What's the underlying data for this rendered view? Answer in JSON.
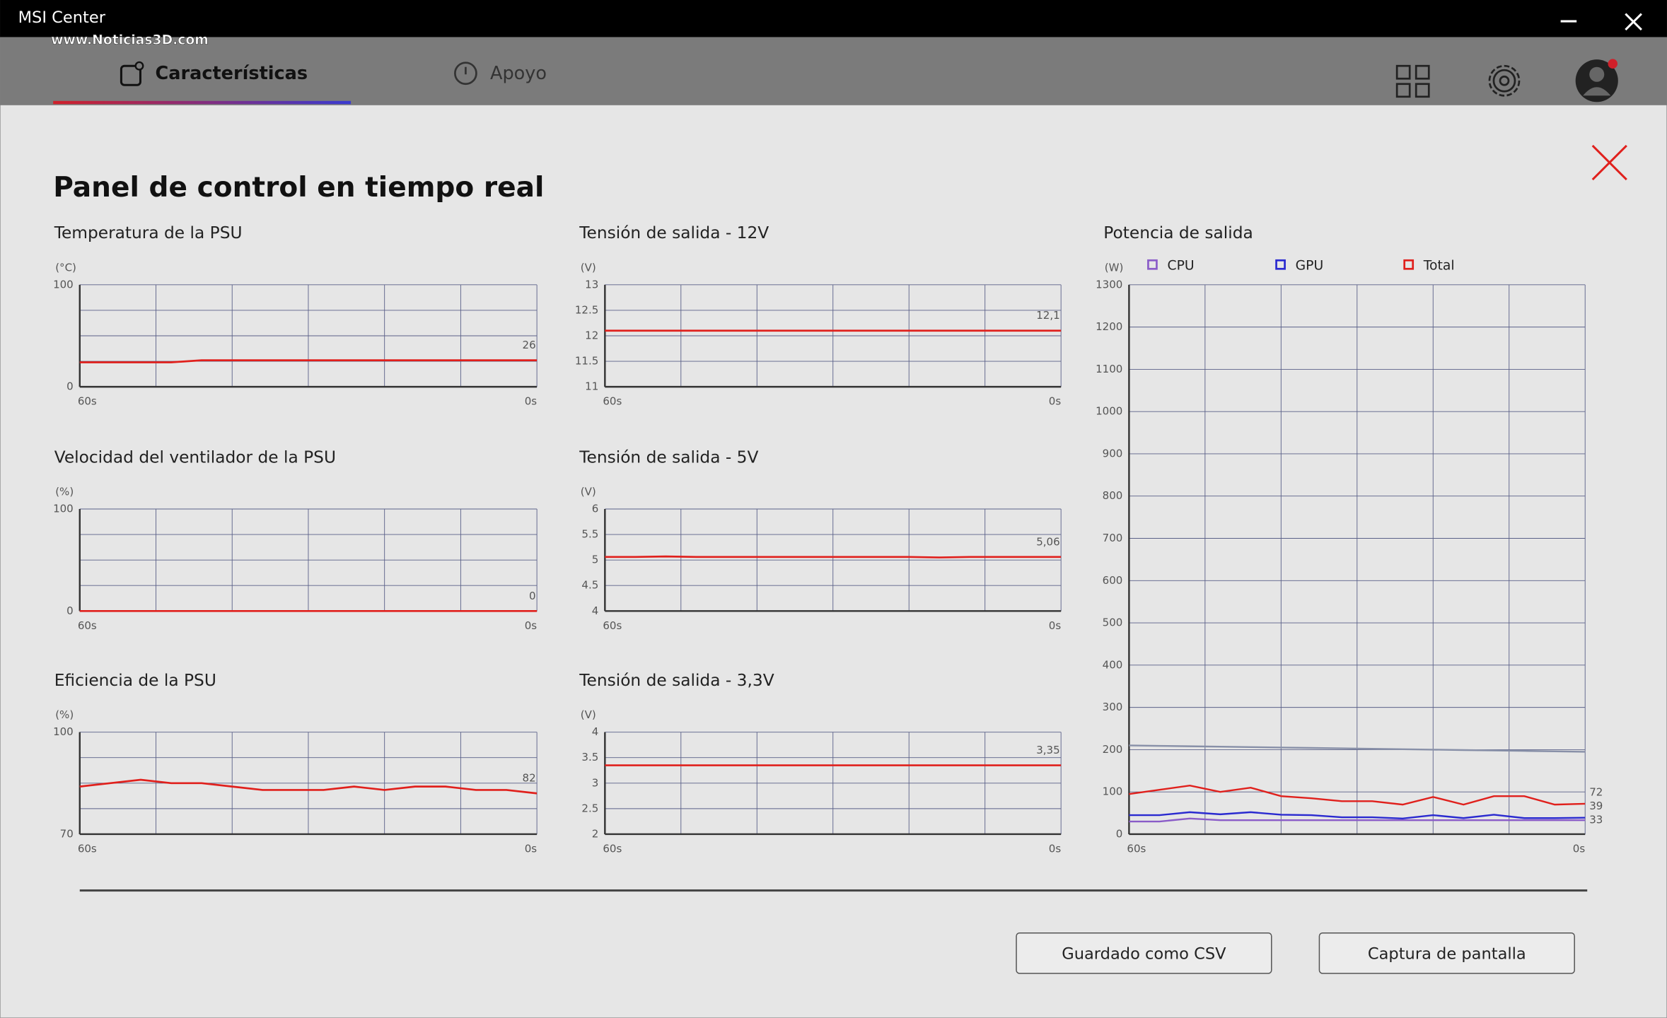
{
  "window": {
    "title": "MSI Center",
    "watermark": "www.Noticias3D.com"
  },
  "tabs": [
    {
      "label": "Características"
    },
    {
      "label": "Apoyo"
    }
  ],
  "panel": {
    "title": "Panel de control en tiempo real"
  },
  "buttons": [
    "Guardado como CSV",
    "Captura de pantalla"
  ],
  "chart_data": [
    {
      "type": "line",
      "title": "Temperatura de la PSU",
      "unit_label": "(°C)",
      "x": [
        60,
        56,
        52,
        48,
        44,
        40,
        36,
        32,
        28,
        24,
        20,
        16,
        12,
        8,
        4,
        0
      ],
      "xlim": [
        60,
        0
      ],
      "xticks": [
        {
          "value": 60,
          "label": "60s"
        },
        {
          "value": 0,
          "label": "0s"
        }
      ],
      "xgrid": [
        50,
        40,
        30,
        20,
        10
      ],
      "ylim": [
        0,
        100
      ],
      "yticks": [
        0,
        100
      ],
      "ygrid": [
        25,
        50,
        75
      ],
      "series": [
        {
          "color": "#e0201c",
          "values": [
            24,
            24,
            24,
            24,
            26,
            26,
            26,
            26,
            26,
            26,
            26,
            26,
            26,
            26,
            26,
            26
          ],
          "value_labels": [
            null,
            null,
            null,
            null,
            null,
            null,
            null,
            null,
            null,
            null,
            null,
            null,
            null,
            null,
            null,
            "26"
          ]
        }
      ]
    },
    {
      "type": "line",
      "title": "Tensión de salida - 12V",
      "unit_label": "(V)",
      "x": [
        60,
        56,
        52,
        48,
        44,
        40,
        36,
        32,
        28,
        24,
        20,
        16,
        12,
        8,
        4,
        0
      ],
      "xlim": [
        60,
        0
      ],
      "xticks": [
        {
          "value": 60,
          "label": "60s"
        },
        {
          "value": 0,
          "label": "0s"
        }
      ],
      "xgrid": [
        50,
        40,
        30,
        20,
        10
      ],
      "ylim": [
        11,
        13
      ],
      "yticks": [
        11,
        11.5,
        12,
        12.5,
        13
      ],
      "ygrid": [],
      "series": [
        {
          "color": "#e0201c",
          "values": [
            12.1,
            12.1,
            12.1,
            12.1,
            12.1,
            12.1,
            12.1,
            12.1,
            12.1,
            12.1,
            12.1,
            12.1,
            12.1,
            12.1,
            12.1,
            12.1
          ],
          "value_labels": [
            null,
            null,
            null,
            null,
            null,
            null,
            null,
            null,
            null,
            null,
            null,
            null,
            null,
            null,
            null,
            "12,1"
          ]
        }
      ]
    },
    {
      "type": "line",
      "title": "Potencia de salida",
      "unit_label": "(W)",
      "x": [
        60,
        56,
        52,
        48,
        44,
        40,
        36,
        32,
        28,
        24,
        20,
        16,
        12,
        8,
        4,
        0
      ],
      "xlim": [
        60,
        0
      ],
      "xticks": [
        {
          "value": 60,
          "label": "60s"
        },
        {
          "value": 0,
          "label": "0s"
        }
      ],
      "xgrid": [
        50,
        40,
        30,
        20,
        10
      ],
      "ylim": [
        0,
        1300
      ],
      "yticks": [
        0,
        100,
        200,
        300,
        400,
        500,
        600,
        700,
        800,
        900,
        1000,
        1100,
        1200,
        1300
      ],
      "ygrid": [],
      "series": [
        {
          "name": "CPU",
          "color": "#8a5cc8",
          "values": [
            30,
            30,
            37,
            33,
            33,
            33,
            33,
            33,
            33,
            33,
            33,
            33,
            33,
            33,
            33,
            33
          ],
          "value_labels": [
            null,
            null,
            null,
            null,
            null,
            null,
            null,
            null,
            null,
            null,
            null,
            null,
            null,
            null,
            null,
            "33"
          ]
        },
        {
          "name": "GPU",
          "color": "#2a2ad0",
          "values": [
            45,
            45,
            52,
            47,
            52,
            46,
            45,
            40,
            40,
            37,
            45,
            38,
            46,
            38,
            38,
            39
          ],
          "value_labels": [
            null,
            null,
            null,
            null,
            null,
            null,
            null,
            null,
            null,
            null,
            null,
            null,
            null,
            null,
            null,
            "39"
          ]
        },
        {
          "name": "Total",
          "color": "#e0201c",
          "values": [
            95,
            105,
            115,
            100,
            110,
            90,
            85,
            78,
            78,
            70,
            88,
            70,
            90,
            90,
            70,
            72
          ],
          "value_labels": [
            null,
            null,
            null,
            null,
            null,
            null,
            null,
            null,
            null,
            null,
            null,
            null,
            null,
            null,
            null,
            "72"
          ]
        },
        {
          "color": "#8890a8",
          "values": [
            210,
            209,
            208,
            207,
            206,
            205,
            204,
            203,
            202,
            201,
            200,
            199,
            198,
            197,
            196,
            195
          ]
        }
      ]
    },
    {
      "type": "line",
      "title": "Velocidad del ventilador de la PSU",
      "unit_label": "(%)",
      "x": [
        60,
        56,
        52,
        48,
        44,
        40,
        36,
        32,
        28,
        24,
        20,
        16,
        12,
        8,
        4,
        0
      ],
      "xlim": [
        60,
        0
      ],
      "xticks": [
        {
          "value": 60,
          "label": "60s"
        },
        {
          "value": 0,
          "label": "0s"
        }
      ],
      "xgrid": [
        50,
        40,
        30,
        20,
        10
      ],
      "ylim": [
        0,
        100
      ],
      "yticks": [
        0,
        100
      ],
      "ygrid": [
        25,
        50,
        75
      ],
      "series": [
        {
          "color": "#e0201c",
          "values": [
            0,
            0,
            0,
            0,
            0,
            0,
            0,
            0,
            0,
            0,
            0,
            0,
            0,
            0,
            0,
            0
          ],
          "value_labels": [
            null,
            null,
            null,
            null,
            null,
            null,
            null,
            null,
            null,
            null,
            null,
            null,
            null,
            null,
            null,
            "0"
          ]
        }
      ]
    },
    {
      "type": "line",
      "title": "Tensión de salida - 5V",
      "unit_label": "(V)",
      "x": [
        60,
        56,
        52,
        48,
        44,
        40,
        36,
        32,
        28,
        24,
        20,
        16,
        12,
        8,
        4,
        0
      ],
      "xlim": [
        60,
        0
      ],
      "xticks": [
        {
          "value": 60,
          "label": "60s"
        },
        {
          "value": 0,
          "label": "0s"
        }
      ],
      "xgrid": [
        50,
        40,
        30,
        20,
        10
      ],
      "ylim": [
        4,
        6
      ],
      "yticks": [
        4,
        4.5,
        5,
        5.5,
        6
      ],
      "ygrid": [],
      "series": [
        {
          "color": "#e0201c",
          "values": [
            5.06,
            5.06,
            5.07,
            5.06,
            5.06,
            5.06,
            5.06,
            5.06,
            5.06,
            5.06,
            5.06,
            5.05,
            5.06,
            5.06,
            5.06,
            5.06
          ],
          "value_labels": [
            null,
            null,
            null,
            null,
            null,
            null,
            null,
            null,
            null,
            null,
            null,
            null,
            null,
            null,
            null,
            "5,06"
          ]
        }
      ]
    },
    {
      "type": "line",
      "title": "Eficiencia de la PSU",
      "unit_label": "(%)",
      "x": [
        60,
        56,
        52,
        48,
        44,
        40,
        36,
        32,
        28,
        24,
        20,
        16,
        12,
        8,
        4,
        0
      ],
      "xlim": [
        60,
        0
      ],
      "xticks": [
        {
          "value": 60,
          "label": "60s"
        },
        {
          "value": 0,
          "label": "0s"
        }
      ],
      "xgrid": [
        50,
        40,
        30,
        20,
        10
      ],
      "ylim": [
        70,
        100
      ],
      "yticks": [
        70,
        100
      ],
      "ygrid": [
        77.5,
        85,
        92.5
      ],
      "series": [
        {
          "color": "#e0201c",
          "values": [
            84,
            85,
            86,
            85,
            85,
            84,
            83,
            83,
            83,
            84,
            83,
            84,
            84,
            83,
            83,
            82
          ],
          "value_labels": [
            null,
            null,
            null,
            null,
            null,
            null,
            null,
            null,
            null,
            null,
            null,
            null,
            null,
            null,
            null,
            "82"
          ]
        }
      ]
    },
    {
      "type": "line",
      "title": "Tensión de salida - 3,3V",
      "unit_label": "(V)",
      "x": [
        60,
        56,
        52,
        48,
        44,
        40,
        36,
        32,
        28,
        24,
        20,
        16,
        12,
        8,
        4,
        0
      ],
      "xlim": [
        60,
        0
      ],
      "xticks": [
        {
          "value": 60,
          "label": "60s"
        },
        {
          "value": 0,
          "label": "0s"
        }
      ],
      "xgrid": [
        50,
        40,
        30,
        20,
        10
      ],
      "ylim": [
        2,
        4
      ],
      "yticks": [
        2,
        2.5,
        3,
        3.5,
        4
      ],
      "ygrid": [],
      "series": [
        {
          "color": "#e0201c",
          "values": [
            3.35,
            3.35,
            3.35,
            3.35,
            3.35,
            3.35,
            3.35,
            3.35,
            3.35,
            3.35,
            3.35,
            3.35,
            3.35,
            3.35,
            3.35,
            3.35
          ],
          "value_labels": [
            null,
            null,
            null,
            null,
            null,
            null,
            null,
            null,
            null,
            null,
            null,
            null,
            null,
            null,
            null,
            "3,35"
          ]
        }
      ]
    }
  ]
}
